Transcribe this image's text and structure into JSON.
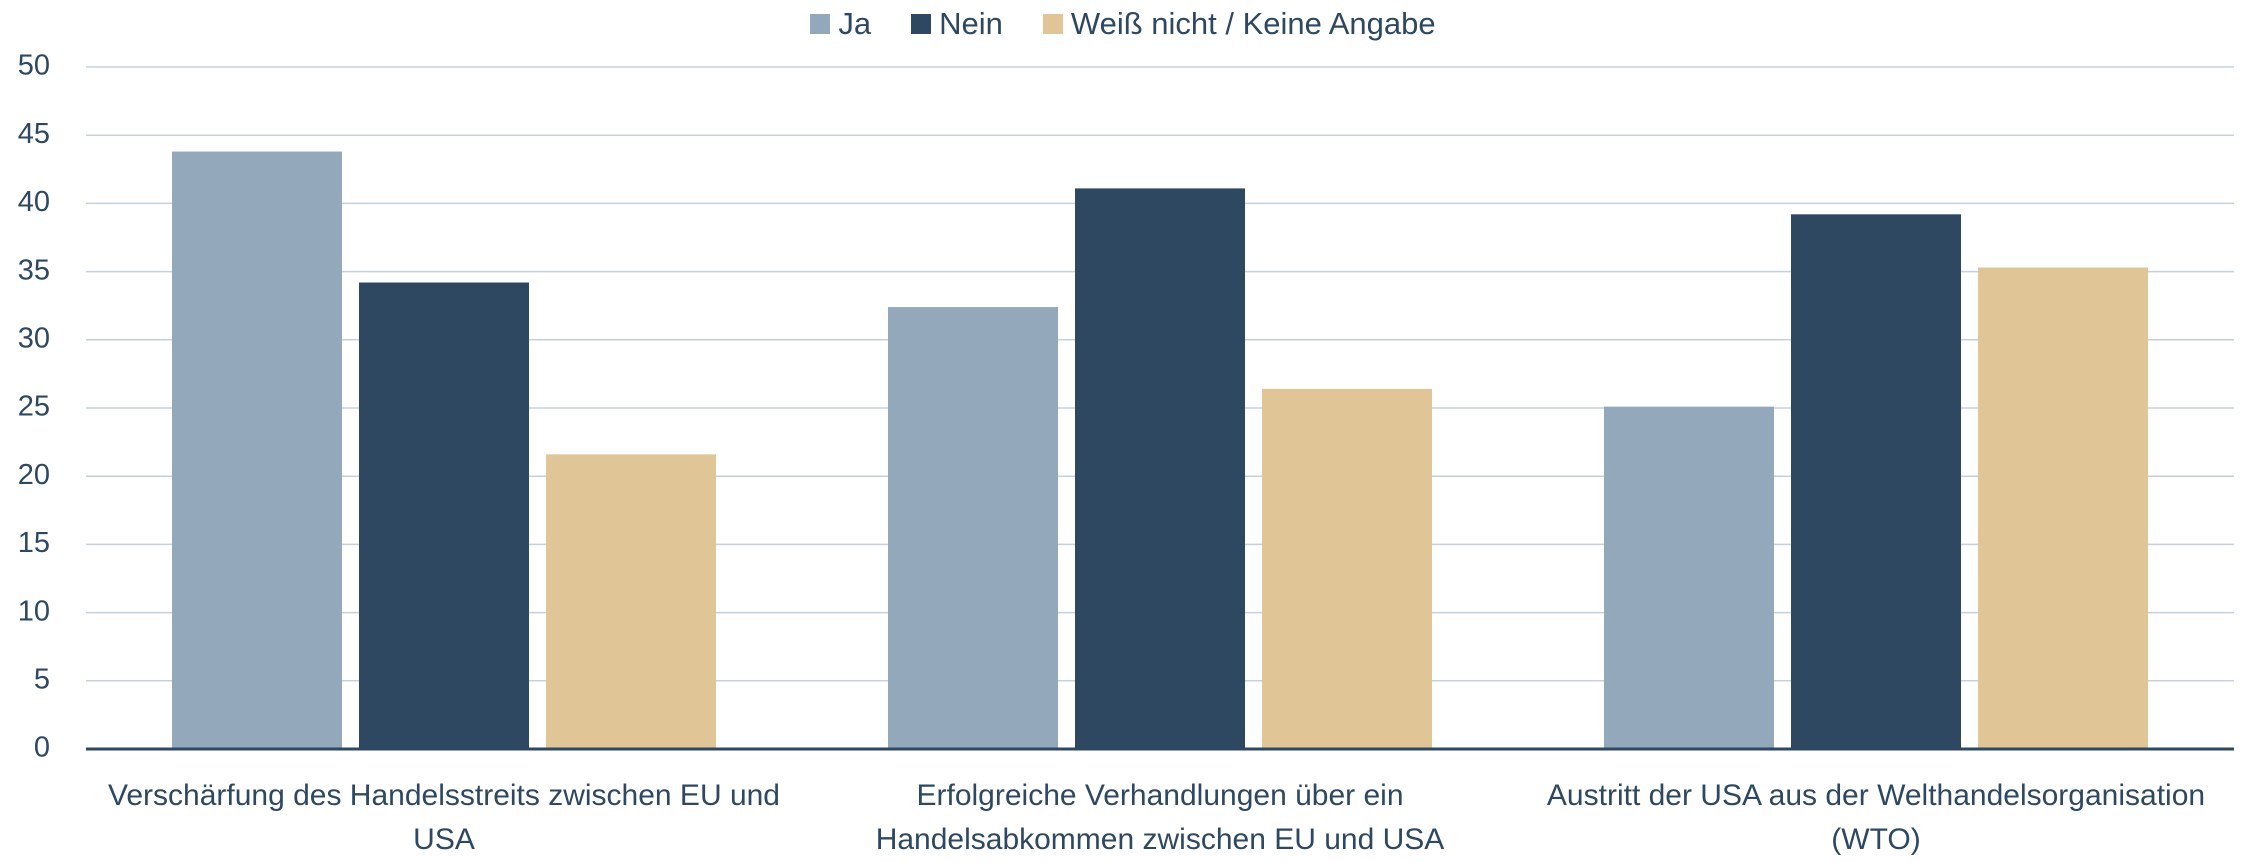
{
  "chart_data": {
    "type": "bar",
    "categories": [
      "Verschärfung des Handelsstreits zwischen EU und USA",
      "Erfolgreiche Verhandlungen über ein Handelsabkommen zwischen EU und USA",
      "Austritt der USA aus der Welthandelsorganisation (WTO)"
    ],
    "series": [
      {
        "name": "Ja",
        "color": "#94a8bb",
        "values": [
          43.8,
          32.4,
          25.1
        ]
      },
      {
        "name": "Nein",
        "color": "#2e4862",
        "values": [
          34.2,
          41.1,
          39.2
        ]
      },
      {
        "name": "Weiß nicht / Keine Angabe",
        "color": "#e0c596",
        "values": [
          21.6,
          26.4,
          35.3
        ]
      }
    ],
    "ylim": [
      0,
      50
    ],
    "yticks": [
      0,
      5,
      10,
      15,
      20,
      25,
      30,
      35,
      40,
      45,
      50
    ],
    "grid": true,
    "legend": "top"
  }
}
